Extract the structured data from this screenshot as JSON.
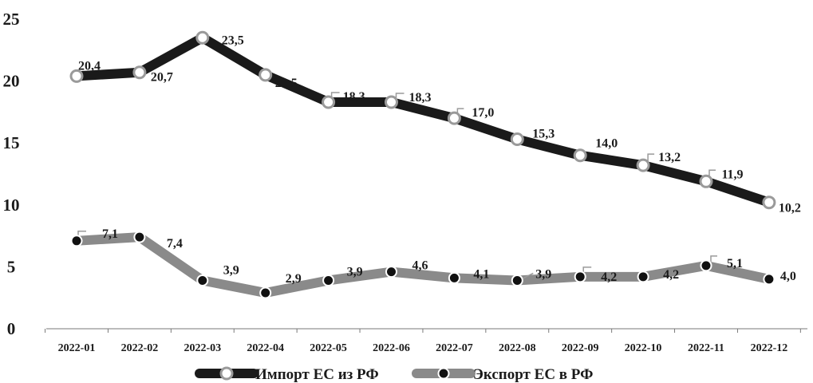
{
  "chart_data": {
    "type": "line",
    "categories": [
      "2022-01",
      "2022-02",
      "2022-03",
      "2022-04",
      "2022-05",
      "2022-06",
      "2022-07",
      "2022-08",
      "2022-09",
      "2022-10",
      "2022-11",
      "2022-12"
    ],
    "ylim": [
      0,
      25
    ],
    "yticks": [
      "0",
      "5",
      "10",
      "15",
      "20",
      "25"
    ],
    "grid": false,
    "legend_position": "bottom",
    "series": [
      {
        "name": "Импорт ЕС из РФ",
        "color": "#1a1a1a",
        "marker_fill": "#ffffff",
        "marker_stroke": "#9a9a9a",
        "values": [
          20.4,
          20.7,
          23.5,
          20.5,
          18.3,
          18.3,
          17.0,
          15.3,
          14.0,
          13.2,
          11.9,
          10.2
        ],
        "labels": [
          "20,4",
          "20,7",
          "23,5",
          "20,5",
          "18,3",
          "18,3",
          "17,0",
          "15,3",
          "14,0",
          "13,2",
          "11,9",
          "10,2"
        ]
      },
      {
        "name": "Экспорт ЕС в РФ",
        "color": "#8a8a8a",
        "marker_fill": "#111111",
        "marker_stroke": "#ffffff",
        "values": [
          7.1,
          7.4,
          3.9,
          2.9,
          3.9,
          4.6,
          4.1,
          3.9,
          4.2,
          4.2,
          5.1,
          4.0
        ],
        "labels": [
          "7,1",
          "7,4",
          "3,9",
          "2,9",
          "3,9",
          "4,6",
          "4,1",
          "3,9",
          "4,2",
          "4,2",
          "5,1",
          "4,0"
        ]
      }
    ]
  }
}
